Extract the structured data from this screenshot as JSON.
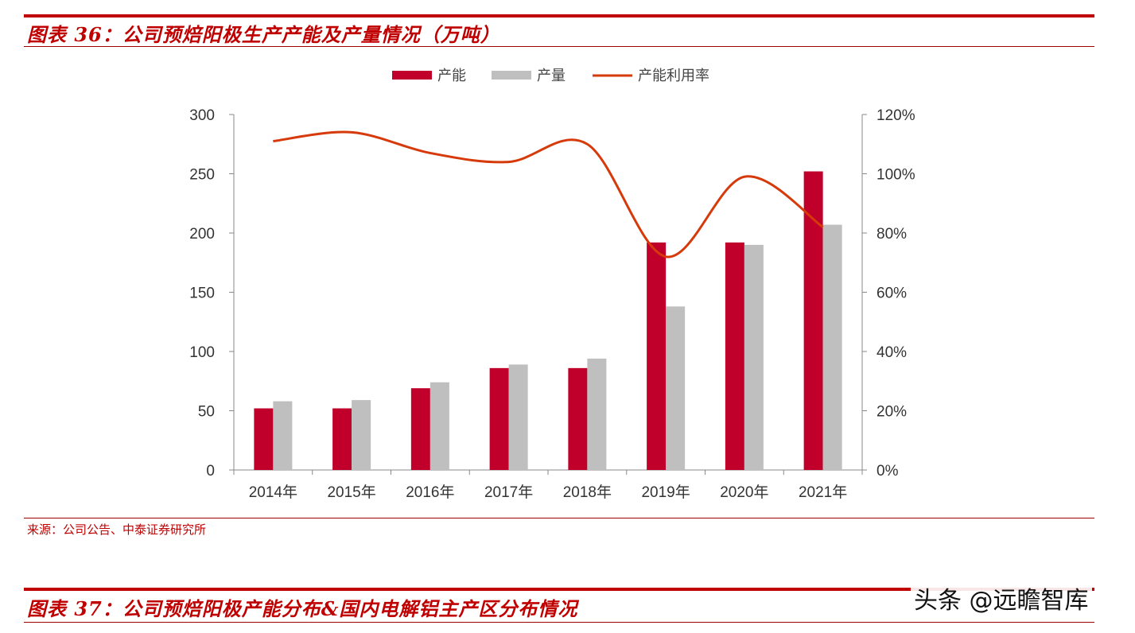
{
  "header": {
    "title": "图表 36：公司预焙阳极生产产能及产量情况（万吨）"
  },
  "footer": {
    "source": "来源：公司公告、中泰证券研究所",
    "next_title": "图表 37：公司预焙阳极产能分布&国内电解铝主产区分布情况",
    "watermark": "头条 @远瞻智库"
  },
  "chart_data": {
    "type": "bar",
    "title": "图表 36：公司预焙阳极生产产能及产量情况（万吨）",
    "categories": [
      "2014年",
      "2015年",
      "2016年",
      "2017年",
      "2018年",
      "2019年",
      "2020年",
      "2021年"
    ],
    "series": [
      {
        "name": "产能",
        "type": "bar",
        "axis": "left",
        "color": "#c0002a",
        "values": [
          52,
          52,
          69,
          86,
          86,
          192,
          192,
          252
        ]
      },
      {
        "name": "产量",
        "type": "bar",
        "axis": "left",
        "color": "#bfbfbf",
        "values": [
          58,
          59,
          74,
          89,
          94,
          138,
          190,
          207
        ]
      },
      {
        "name": "产能利用率",
        "type": "line",
        "axis": "right",
        "color": "#d63a0a",
        "values": [
          111,
          114,
          107,
          104,
          110,
          72,
          99,
          82
        ]
      }
    ],
    "ylim_left": [
      0,
      300
    ],
    "yticks_left": [
      "0",
      "50",
      "100",
      "150",
      "200",
      "250",
      "300"
    ],
    "ylim_right": [
      0,
      120
    ],
    "yticks_right": [
      "0%",
      "20%",
      "40%",
      "60%",
      "80%",
      "100%",
      "120%"
    ],
    "grid": false,
    "legend_position": "top-center"
  }
}
